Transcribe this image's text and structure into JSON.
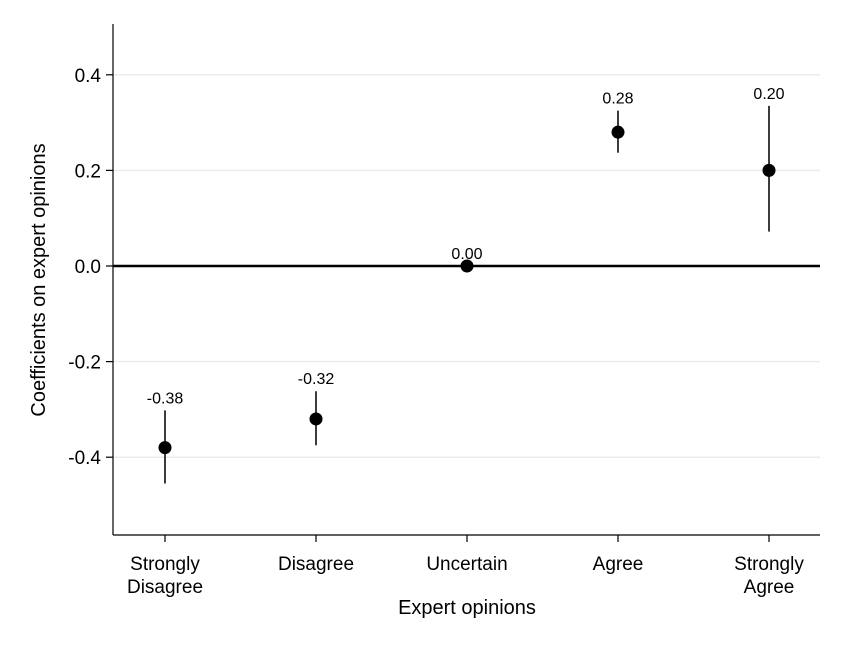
{
  "chart_data": {
    "type": "scatter",
    "title": "",
    "xlabel": "Expert opinions",
    "ylabel": "Coefficients on expert opinions",
    "categories": [
      [
        "Strongly",
        "Disagree"
      ],
      [
        "Disagree"
      ],
      [
        "Uncertain"
      ],
      [
        "Agree"
      ],
      [
        "Strongly",
        "Agree"
      ]
    ],
    "values": [
      -0.38,
      -0.32,
      0.0,
      0.28,
      0.2
    ],
    "value_labels": [
      "-0.38",
      "-0.32",
      "0.00",
      "0.28",
      "0.20"
    ],
    "ci_low": [
      -0.455,
      -0.375,
      0.0,
      0.237,
      0.072
    ],
    "ci_high": [
      -0.302,
      -0.262,
      0.0,
      0.325,
      0.335
    ],
    "yticks": [
      -0.4,
      -0.2,
      0.0,
      0.2,
      0.4
    ],
    "ytick_labels": [
      "-0.4",
      "-0.2",
      "0.0",
      "0.2",
      "0.4"
    ],
    "ylim": [
      -0.56,
      0.51
    ],
    "grid": true,
    "reference_line": 0.0,
    "colors": {
      "marker": "#000000",
      "ci": "#3c3c3c",
      "grid": "#ebebeb",
      "zero_line": "#000000"
    }
  }
}
